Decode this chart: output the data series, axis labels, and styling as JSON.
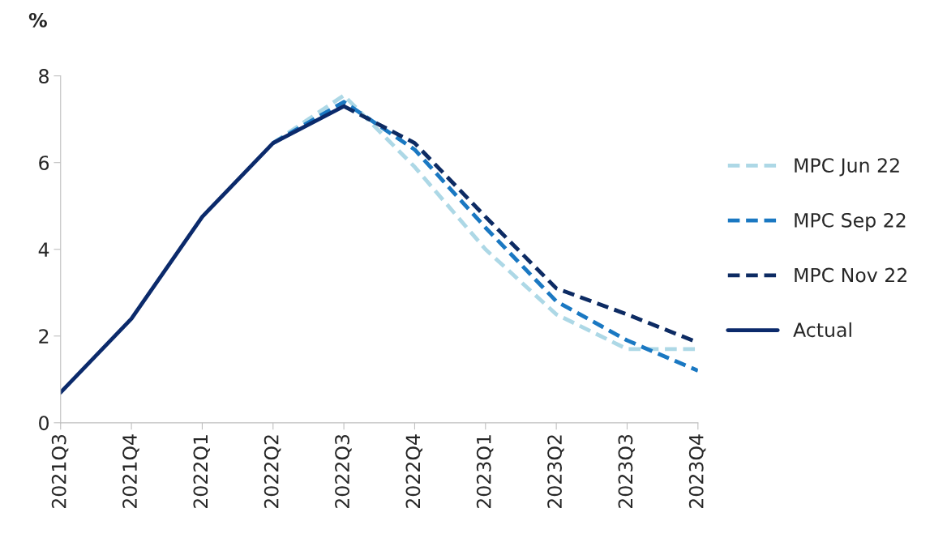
{
  "chart_data": {
    "type": "line",
    "ylabel": "%",
    "categories": [
      "2021Q3",
      "2021Q4",
      "2022Q1",
      "2022Q2",
      "2022Q3",
      "2022Q4",
      "2023Q1",
      "2023Q2",
      "2023Q3",
      "2023Q4"
    ],
    "series": [
      {
        "name": "MPC Jun 22",
        "color": "#add8e6",
        "line_style": "dashed",
        "values": [
          null,
          null,
          null,
          6.45,
          7.55,
          5.9,
          4.0,
          2.5,
          1.7,
          1.7
        ]
      },
      {
        "name": "MPC Sep 22",
        "color": "#1a78c2",
        "line_style": "dashed",
        "values": [
          null,
          null,
          null,
          6.45,
          7.4,
          6.3,
          4.5,
          2.8,
          1.9,
          1.2
        ]
      },
      {
        "name": "MPC Nov 22",
        "color": "#0d2b63",
        "line_style": "dashed",
        "values": [
          null,
          null,
          null,
          null,
          7.3,
          6.45,
          4.75,
          3.1,
          2.5,
          1.85
        ]
      },
      {
        "name": "Actual",
        "color": "#0b2a6b",
        "line_style": "solid",
        "values": [
          0.7,
          2.4,
          4.75,
          6.45,
          7.3,
          null,
          null,
          null,
          null,
          null
        ]
      }
    ],
    "ylim": [
      0,
      8
    ],
    "yticks": [
      0,
      2,
      4,
      6,
      8
    ],
    "grid": false,
    "legend": "right",
    "marker": "none"
  }
}
